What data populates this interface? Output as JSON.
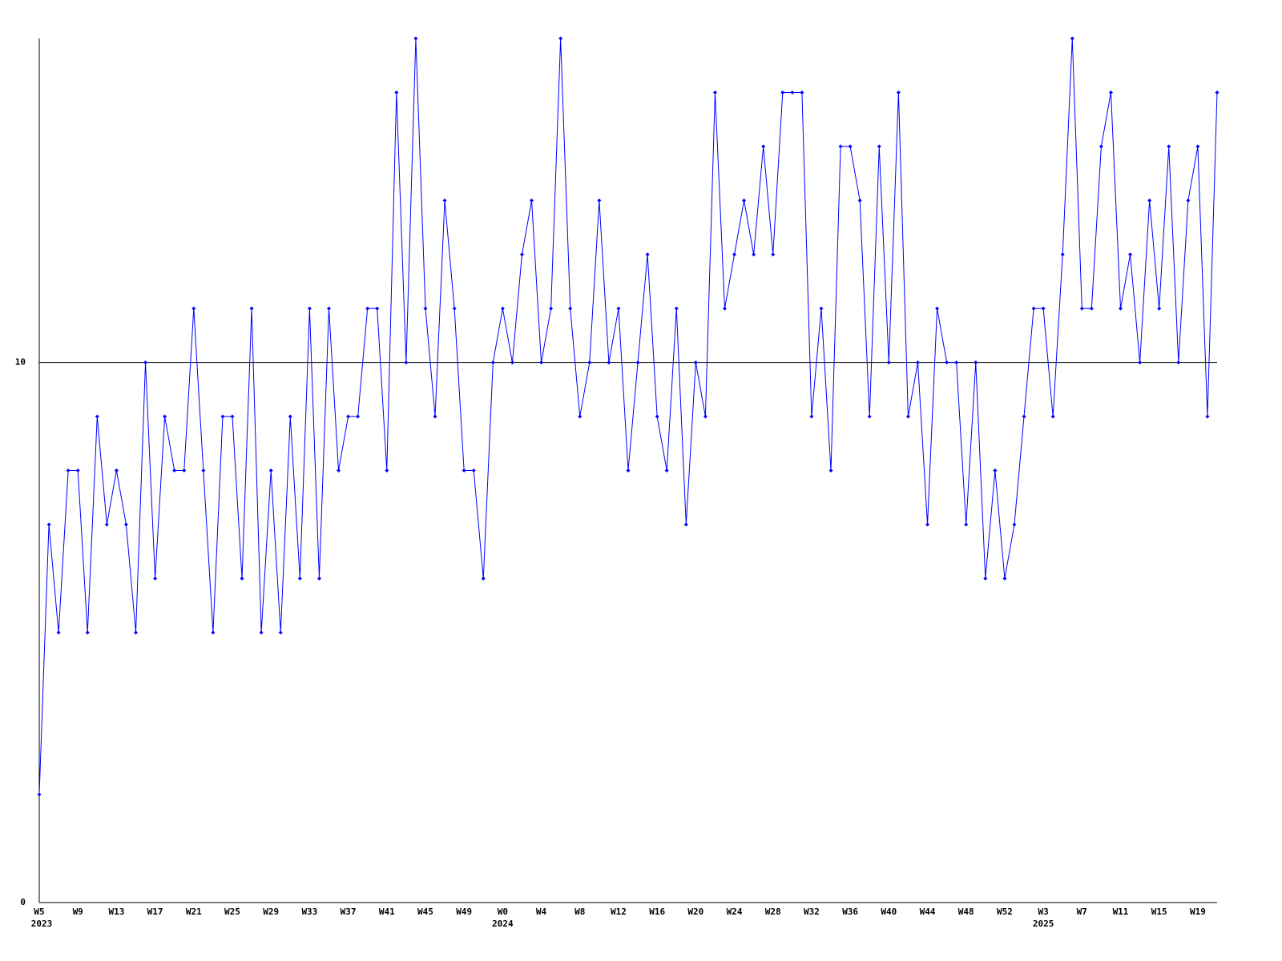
{
  "chart_data": {
    "type": "line",
    "categories": [
      "W5",
      null,
      null,
      null,
      "W9",
      null,
      null,
      null,
      "W13",
      null,
      null,
      null,
      "W17",
      null,
      null,
      null,
      "W21",
      null,
      null,
      null,
      "W25",
      null,
      null,
      null,
      "W29",
      null,
      null,
      null,
      "W33",
      null,
      null,
      null,
      "W37",
      null,
      null,
      null,
      "W41",
      null,
      null,
      null,
      "W45",
      null,
      null,
      null,
      "W49",
      null,
      null,
      null,
      "W0",
      null,
      null,
      null,
      "W4",
      null,
      null,
      null,
      "W8",
      null,
      null,
      null,
      "W12",
      null,
      null,
      null,
      "W16",
      null,
      null,
      null,
      "W20",
      null,
      null,
      null,
      "W24",
      null,
      null,
      null,
      "W28",
      null,
      null,
      null,
      "W32",
      null,
      null,
      null,
      "W36",
      null,
      null,
      null,
      "W40",
      null,
      null,
      null,
      "W44",
      null,
      null,
      null,
      "W48",
      null,
      null,
      null,
      "W52",
      null,
      null,
      null,
      "W3",
      null,
      null,
      null,
      "W7",
      null,
      null,
      null,
      "W11",
      null,
      null,
      null,
      "W15",
      null,
      null,
      null,
      "W19",
      null,
      null
    ],
    "category_years": [
      "2023",
      null,
      null,
      null,
      null,
      null,
      null,
      null,
      null,
      null,
      null,
      null,
      null,
      null,
      null,
      null,
      null,
      null,
      null,
      null,
      null,
      null,
      null,
      null,
      null,
      null,
      null,
      null,
      null,
      null,
      null,
      null,
      null,
      null,
      null,
      null,
      null,
      null,
      null,
      null,
      null,
      null,
      null,
      null,
      null,
      null,
      null,
      null,
      "2024",
      null,
      null,
      null,
      null,
      null,
      null,
      null,
      null,
      null,
      null,
      null,
      null,
      null,
      null,
      null,
      null,
      null,
      null,
      null,
      null,
      null,
      null,
      null,
      null,
      null,
      null,
      null,
      null,
      null,
      null,
      null,
      null,
      null,
      null,
      null,
      null,
      null,
      null,
      null,
      null,
      null,
      null,
      null,
      null,
      null,
      null,
      null,
      null,
      null,
      null,
      null,
      null,
      null,
      null,
      null,
      "2025",
      null,
      null,
      null,
      null,
      null,
      null,
      null,
      null,
      null,
      null,
      null,
      null,
      null,
      null,
      null,
      null,
      null,
      null
    ],
    "series": [
      {
        "color": "#0000ff",
        "values": [
          2,
          7,
          5,
          8,
          8,
          5,
          9,
          7,
          8,
          7,
          5,
          10,
          6,
          9,
          8,
          8,
          11,
          8,
          5,
          9,
          9,
          6,
          11,
          5,
          8,
          5,
          9,
          6,
          11,
          6,
          11,
          8,
          9,
          9,
          11,
          11,
          8,
          15,
          10,
          16,
          11,
          9,
          13,
          11,
          8,
          8,
          6,
          10,
          11,
          10,
          12,
          13,
          10,
          11,
          16,
          11,
          9,
          10,
          13,
          10,
          11,
          8,
          10,
          12,
          9,
          8,
          11,
          7,
          10,
          9,
          15,
          11,
          12,
          13,
          12,
          14,
          12,
          15,
          15,
          15,
          9,
          11,
          8,
          14,
          14,
          13,
          9,
          14,
          10,
          15,
          9,
          10,
          7,
          11,
          10,
          10,
          7,
          10,
          6,
          8,
          6,
          7,
          9,
          11,
          11,
          9,
          12,
          16,
          11,
          11,
          14,
          15,
          11,
          12,
          10,
          13,
          11,
          14,
          10,
          13,
          14,
          9,
          15
        ]
      }
    ],
    "ylim": [
      0,
      16
    ],
    "yticks": [
      0,
      10
    ],
    "grid": true
  }
}
